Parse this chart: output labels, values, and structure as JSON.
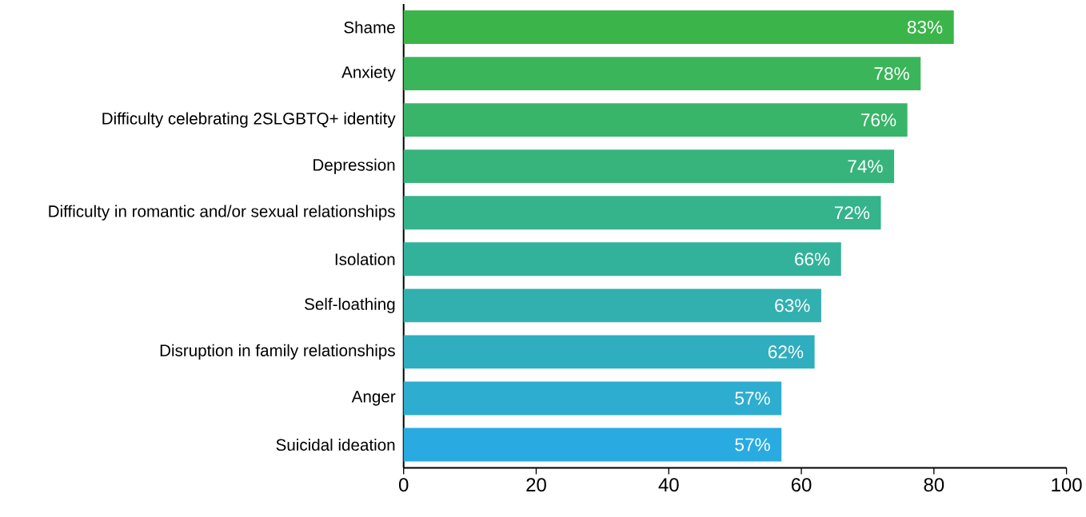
{
  "chart_data": {
    "type": "bar",
    "orientation": "horizontal",
    "categories": [
      "Shame",
      "Anxiety",
      "Difficulty celebrating 2SLGBTQ+ identity",
      "Depression",
      "Difficulty in romantic and/or sexual relationships",
      "Isolation",
      "Self-loathing",
      "Disruption in family relationships",
      "Anger",
      "Suicidal ideation"
    ],
    "values": [
      83,
      78,
      76,
      74,
      72,
      66,
      63,
      62,
      57,
      57
    ],
    "value_labels": [
      "83%",
      "78%",
      "76%",
      "74%",
      "72%",
      "66%",
      "63%",
      "62%",
      "57%",
      "57%"
    ],
    "colors": [
      "#3bb54a",
      "#3ab55a",
      "#39b569",
      "#37b47b",
      "#35b38b",
      "#33b29b",
      "#31b0af",
      "#2faebf",
      "#2dadd0",
      "#29abe2"
    ],
    "xlim": [
      0,
      100
    ],
    "xticks": [
      0,
      20,
      40,
      60,
      80,
      100
    ]
  }
}
